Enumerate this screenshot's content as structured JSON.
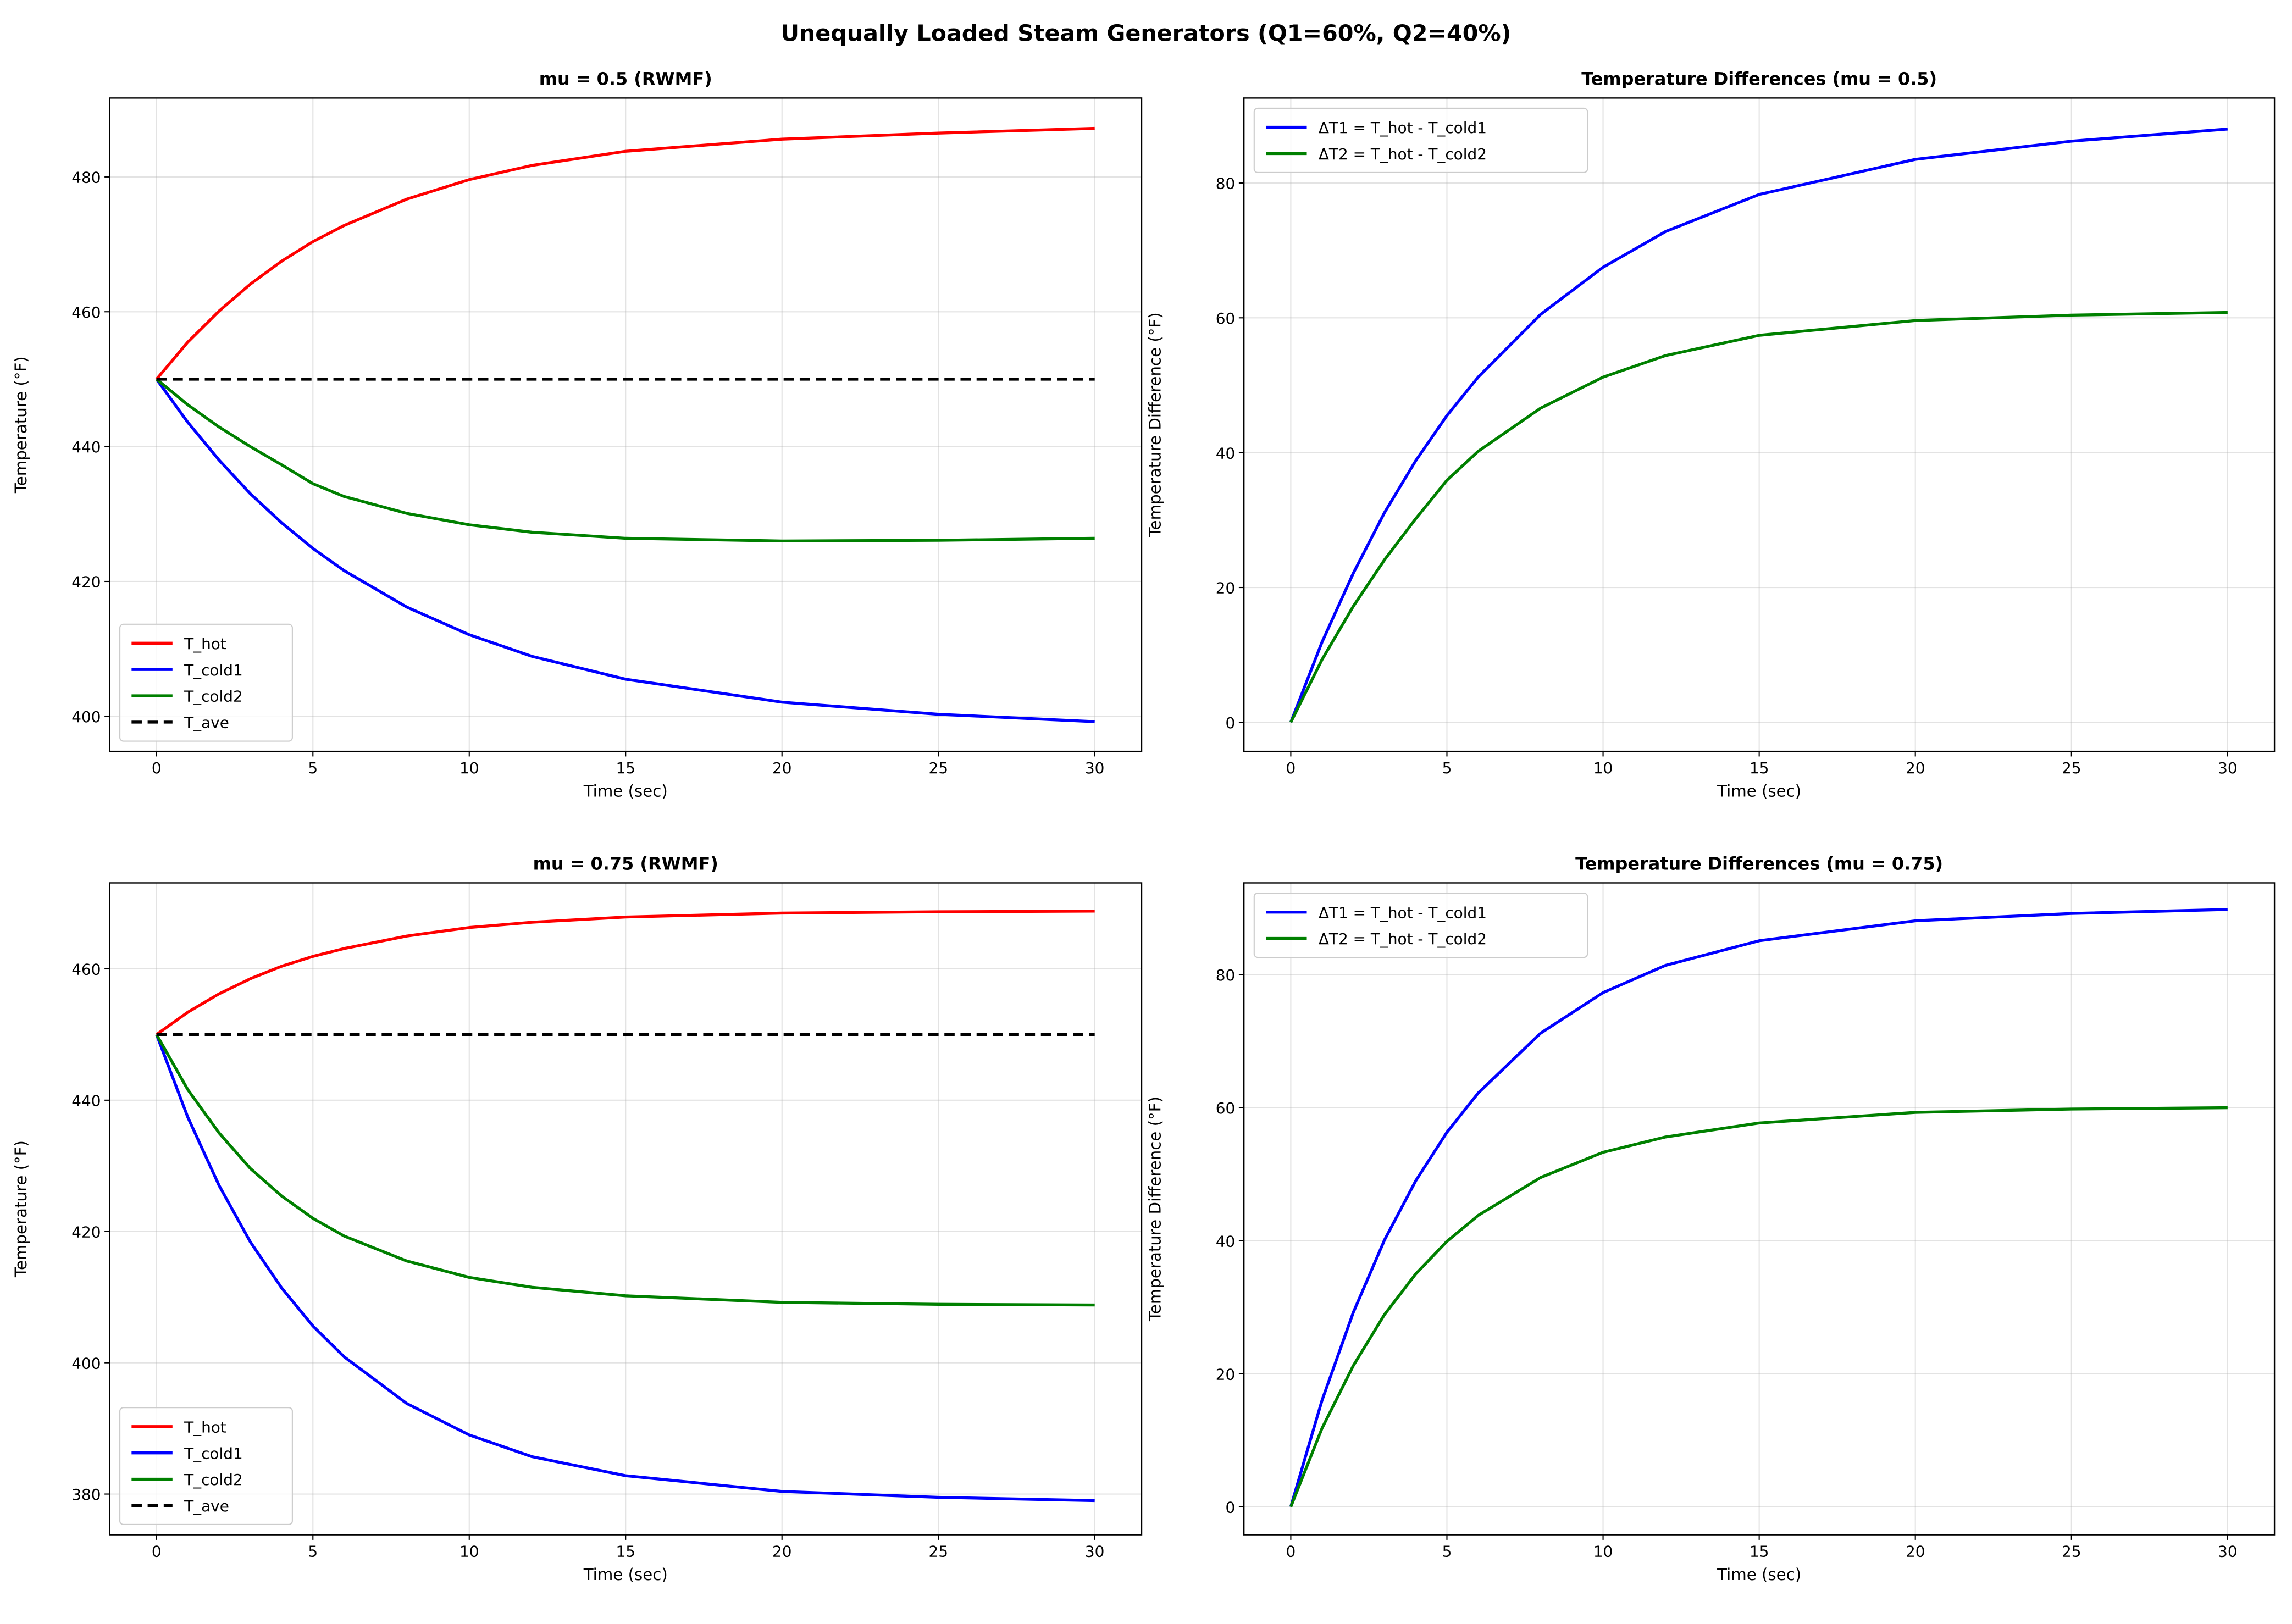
{
  "suptitle": "Unequally Loaded Steam Generators (Q1=60%, Q2=40%)",
  "chart_data": [
    {
      "type": "line",
      "title": "mu = 0.5 (RWMF)",
      "xlabel": "Time (sec)",
      "ylabel": "Temperature (°F)",
      "xlim": [
        -1.5,
        31.5
      ],
      "ylim": [
        394.8,
        491.7
      ],
      "xticks": [
        0,
        5,
        10,
        15,
        20,
        25,
        30
      ],
      "yticks": [
        400,
        420,
        440,
        460,
        480
      ],
      "grid": true,
      "legend_placement": "lower-left",
      "x": [
        0,
        1,
        2,
        3,
        4,
        5,
        6,
        8,
        10,
        12,
        15,
        20,
        25,
        30
      ],
      "series": [
        {
          "name": "T_hot",
          "color": "#ff0000",
          "dash": false,
          "values": [
            450,
            455.5,
            460.1,
            464.1,
            467.5,
            470.4,
            472.8,
            476.7,
            479.6,
            481.7,
            483.8,
            485.6,
            486.5,
            487.2
          ]
        },
        {
          "name": "T_cold1",
          "color": "#0000ff",
          "dash": false,
          "values": [
            450,
            443.6,
            438.0,
            433.0,
            428.7,
            424.9,
            421.6,
            416.2,
            412.1,
            408.9,
            405.5,
            402.1,
            400.3,
            399.2
          ]
        },
        {
          "name": "T_cold2",
          "color": "#008000",
          "dash": false,
          "values": [
            450,
            446.2,
            442.9,
            440.0,
            437.3,
            434.5,
            432.6,
            430.1,
            428.4,
            427.3,
            426.4,
            426.0,
            426.1,
            426.4
          ]
        },
        {
          "name": "T_ave",
          "color": "#000000",
          "dash": true,
          "values": [
            450,
            450,
            450,
            450,
            450,
            450,
            450,
            450,
            450,
            450,
            450,
            450,
            450,
            450
          ]
        }
      ]
    },
    {
      "type": "line",
      "title": "Temperature Differences (mu = 0.5)",
      "xlabel": "Time (sec)",
      "ylabel": "Temperature Difference (°F)",
      "xlim": [
        -1.5,
        31.5
      ],
      "ylim": [
        -4.3,
        92.6
      ],
      "xticks": [
        0,
        5,
        10,
        15,
        20,
        25,
        30
      ],
      "yticks": [
        0,
        20,
        40,
        60,
        80
      ],
      "grid": true,
      "legend_placement": "upper-left",
      "x": [
        0,
        1,
        2,
        3,
        4,
        5,
        6,
        8,
        10,
        12,
        15,
        20,
        25,
        30
      ],
      "series": [
        {
          "name": "ΔT1 = T_hot - T_cold1",
          "color": "#0000ff",
          "dash": false,
          "values": [
            0,
            11.9,
            22.1,
            31.1,
            38.8,
            45.5,
            51.2,
            60.5,
            67.5,
            72.8,
            78.3,
            83.5,
            86.2,
            88.0
          ]
        },
        {
          "name": "ΔT2 = T_hot - T_cold2",
          "color": "#008000",
          "dash": false,
          "values": [
            0,
            9.3,
            17.2,
            24.1,
            30.2,
            35.9,
            40.2,
            46.6,
            51.2,
            54.4,
            57.4,
            59.6,
            60.4,
            60.8
          ]
        }
      ]
    },
    {
      "type": "line",
      "title": "mu = 0.75 (RWMF)",
      "xlabel": "Time (sec)",
      "ylabel": "Temperature (°F)",
      "xlim": [
        -1.5,
        31.5
      ],
      "ylim": [
        373.8,
        473.1
      ],
      "xticks": [
        0,
        5,
        10,
        15,
        20,
        25,
        30
      ],
      "yticks": [
        380,
        400,
        420,
        440,
        460
      ],
      "grid": true,
      "legend_placement": "lower-left",
      "x": [
        0,
        1,
        2,
        3,
        4,
        5,
        6,
        8,
        10,
        12,
        15,
        20,
        25,
        30
      ],
      "series": [
        {
          "name": "T_hot",
          "color": "#ff0000",
          "dash": false,
          "values": [
            450,
            453.4,
            456.2,
            458.5,
            460.4,
            461.9,
            463.1,
            465.0,
            466.3,
            467.1,
            467.9,
            468.5,
            468.7,
            468.8
          ]
        },
        {
          "name": "T_cold1",
          "color": "#0000ff",
          "dash": false,
          "values": [
            450,
            437.4,
            427.0,
            418.4,
            411.4,
            405.6,
            400.9,
            393.8,
            389.0,
            385.7,
            382.8,
            380.4,
            379.5,
            379.0
          ]
        },
        {
          "name": "T_cold2",
          "color": "#008000",
          "dash": false,
          "values": [
            450,
            441.6,
            435.0,
            429.6,
            425.4,
            422.0,
            419.3,
            415.5,
            413.0,
            411.5,
            410.2,
            409.2,
            408.9,
            408.8
          ]
        },
        {
          "name": "T_ave",
          "color": "#000000",
          "dash": true,
          "values": [
            450,
            450,
            450,
            450,
            450,
            450,
            450,
            450,
            450,
            450,
            450,
            450,
            450,
            450
          ]
        }
      ]
    },
    {
      "type": "line",
      "title": "Temperature Differences (mu = 0.75)",
      "xlabel": "Time (sec)",
      "ylabel": "Temperature Difference (°F)",
      "xlim": [
        -1.5,
        31.5
      ],
      "ylim": [
        -4.2,
        93.8
      ],
      "xticks": [
        0,
        5,
        10,
        15,
        20,
        25,
        30
      ],
      "yticks": [
        0,
        20,
        40,
        60,
        80
      ],
      "grid": true,
      "legend_placement": "upper-left",
      "x": [
        0,
        1,
        2,
        3,
        4,
        5,
        6,
        8,
        10,
        12,
        15,
        20,
        25,
        30
      ],
      "series": [
        {
          "name": "ΔT1 = T_hot - T_cold1",
          "color": "#0000ff",
          "dash": false,
          "values": [
            0,
            16.0,
            29.2,
            40.1,
            49.0,
            56.3,
            62.2,
            71.2,
            77.3,
            81.4,
            85.1,
            88.1,
            89.2,
            89.8
          ]
        },
        {
          "name": "ΔT2 = T_hot - T_cold2",
          "color": "#008000",
          "dash": false,
          "values": [
            0,
            11.8,
            21.2,
            28.9,
            35.0,
            39.9,
            43.8,
            49.5,
            53.3,
            55.6,
            57.7,
            59.3,
            59.8,
            60.0
          ]
        }
      ]
    }
  ]
}
